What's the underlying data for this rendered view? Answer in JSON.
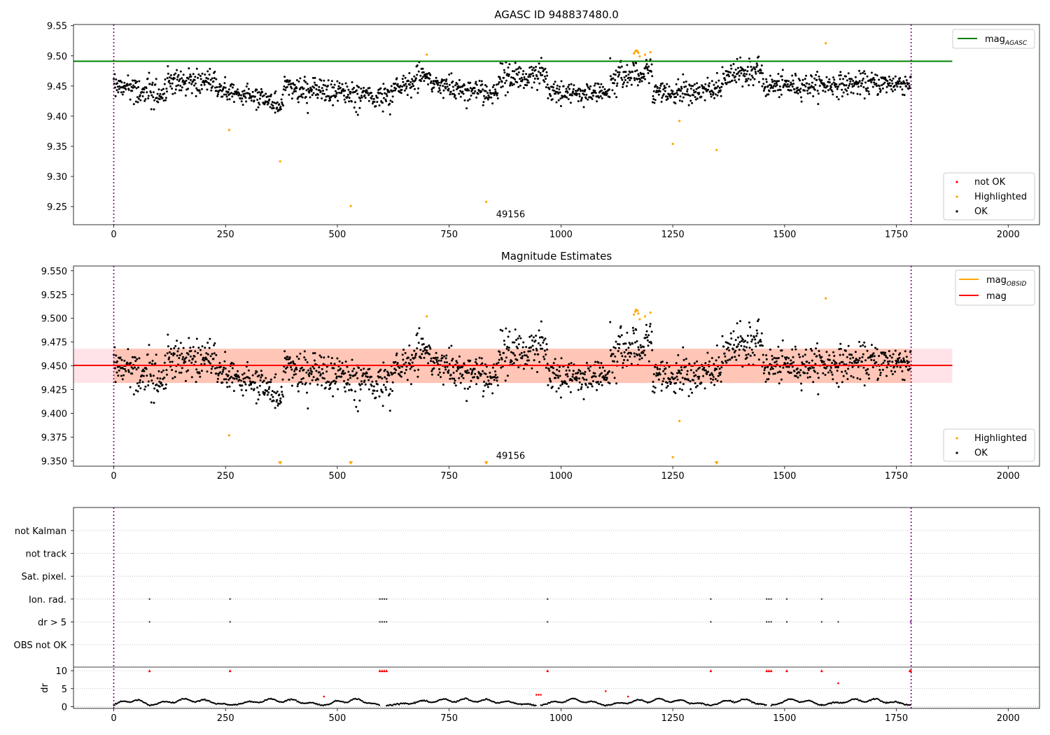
{
  "chart_data": [
    {
      "type": "scatter",
      "title": "AGASC ID 948837480.0",
      "xlim": [
        -90,
        2070
      ],
      "ylim": [
        9.22,
        9.552
      ],
      "x_ticks": [
        0,
        250,
        500,
        750,
        1000,
        1250,
        1500,
        1750,
        2000
      ],
      "y_ticks": [
        9.25,
        9.3,
        9.35,
        9.4,
        9.45,
        9.5,
        9.55
      ],
      "y_tick_labels": [
        "9.25",
        "9.30",
        "9.35",
        "9.40",
        "9.45",
        "9.50",
        "9.55"
      ],
      "vlines": [
        0,
        1783
      ],
      "vline_color": "#800080",
      "annotation": {
        "text": "49156",
        "x": 855,
        "y": 9.232
      },
      "hline": {
        "name": "magAGASC",
        "label_main": "mag",
        "label_sub": "AGASC",
        "y": 9.491,
        "xmax": 1875,
        "color": "#008000"
      },
      "ok_series": {
        "name": "OK",
        "color": "#000000",
        "n": 1783,
        "segments": [
          {
            "x": [
              0,
              120
            ],
            "c": [
              9.452,
              9.432
            ],
            "s": 0.014
          },
          {
            "x": [
              120,
              230
            ],
            "c": [
              9.455,
              9.458
            ],
            "s": 0.016
          },
          {
            "x": [
              230,
              380
            ],
            "c": [
              9.445,
              9.422
            ],
            "s": 0.011
          },
          {
            "x": [
              380,
              620
            ],
            "c": [
              9.446,
              9.43
            ],
            "s": 0.015
          },
          {
            "x": [
              620,
              710
            ],
            "c": [
              9.448,
              9.468
            ],
            "s": 0.014
          },
          {
            "x": [
              710,
              860
            ],
            "c": [
              9.45,
              9.438
            ],
            "s": 0.014
          },
          {
            "x": [
              860,
              970
            ],
            "c": [
              9.462,
              9.468
            ],
            "s": 0.015
          },
          {
            "x": [
              970,
              1110
            ],
            "c": [
              9.438,
              9.44
            ],
            "s": 0.012
          },
          {
            "x": [
              1110,
              1205
            ],
            "c": [
              9.462,
              9.478
            ],
            "s": 0.014
          },
          {
            "x": [
              1205,
              1360
            ],
            "c": [
              9.438,
              9.445
            ],
            "s": 0.013
          },
          {
            "x": [
              1360,
              1450
            ],
            "c": [
              9.462,
              9.478
            ],
            "s": 0.014
          },
          {
            "x": [
              1450,
              1783
            ],
            "c": [
              9.45,
              9.455
            ],
            "s": 0.013
          }
        ]
      },
      "highlighted": {
        "name": "Highlighted",
        "color": "#FFA500",
        "x": [
          258,
          372,
          530,
          700,
          833,
          1163,
          1166,
          1168,
          1171,
          1173,
          1176,
          1188,
          1200,
          1250,
          1265,
          1348,
          1592
        ],
        "y": [
          9.377,
          9.325,
          9.251,
          9.502,
          9.258,
          9.504,
          9.507,
          9.509,
          9.508,
          9.505,
          9.499,
          9.502,
          9.506,
          9.354,
          9.392,
          9.344,
          9.521
        ]
      },
      "not_ok": {
        "name": "not OK",
        "color": "#FF0000",
        "x": [],
        "y": []
      },
      "legends": [
        {
          "position": "upper right",
          "entries": [
            "magAGASC"
          ]
        },
        {
          "position": "lower right",
          "entries": [
            "not OK",
            "Highlighted",
            "OK"
          ]
        }
      ]
    },
    {
      "type": "scatter",
      "title": "Magnitude Estimates",
      "xlim": [
        -90,
        2070
      ],
      "ylim": [
        9.3445,
        9.555
      ],
      "x_ticks": [
        0,
        250,
        500,
        750,
        1000,
        1250,
        1500,
        1750,
        2000
      ],
      "y_ticks": [
        9.35,
        9.375,
        9.4,
        9.425,
        9.45,
        9.475,
        9.5,
        9.525,
        9.55
      ],
      "y_tick_labels": [
        "9.350",
        "9.375",
        "9.400",
        "9.425",
        "9.450",
        "9.475",
        "9.500",
        "9.525",
        "9.550"
      ],
      "vlines": [
        0,
        1783
      ],
      "vline_color": "#800080",
      "annotation": {
        "text": "49156",
        "x": 855,
        "y": 9.3522
      },
      "mag": {
        "name": "mag",
        "y": 9.4505,
        "xmin": -90,
        "xmax": 1875,
        "color": "#FF0000",
        "band": [
          9.432,
          9.468
        ],
        "band_color": "#FFC0CB"
      },
      "mag_obsid": {
        "name": "magOBSID",
        "label_main": "mag",
        "label_sub": "OBSID",
        "y": 9.4505,
        "xmin": 0,
        "xmax": 1783,
        "color": "#FFA500",
        "band": [
          9.432,
          9.468
        ],
        "band_color": "#FFA07A"
      },
      "ok_series": "same as panel 1",
      "highlighted": {
        "name": "Highlighted",
        "color": "#FFA500",
        "x": [
          258,
          700,
          1163,
          1166,
          1168,
          1171,
          1173,
          1176,
          1188,
          1200,
          1250,
          1265,
          1592
        ],
        "y": [
          9.377,
          9.502,
          9.504,
          9.507,
          9.509,
          9.508,
          9.505,
          9.499,
          9.502,
          9.506,
          9.354,
          9.392,
          9.521
        ],
        "below_range_x": [
          372,
          530,
          833,
          1348
        ]
      },
      "legends": [
        {
          "position": "upper right",
          "entries": [
            "magOBSID",
            "mag"
          ]
        },
        {
          "position": "lower right",
          "entries": [
            "Highlighted",
            "OK"
          ]
        }
      ]
    },
    {
      "type": "scatter",
      "title": "",
      "xlim": [
        -90,
        2070
      ],
      "x_ticks": [
        0,
        250,
        500,
        750,
        1000,
        1250,
        1500,
        1750,
        2000
      ],
      "flag_rows": [
        "not Kalman",
        "not track",
        "Sat. pixel.",
        "Ion. rad.",
        "dr > 5",
        "OBS not OK"
      ],
      "vlines": [
        0,
        1783
      ],
      "vline_color": "#800080",
      "flag_points": {
        "Ion. rad.": [
          80,
          260,
          595,
          600,
          605,
          610,
          970,
          1335,
          1460,
          1465,
          1470,
          1505,
          1583,
          1782
        ],
        "dr > 5": [
          80,
          260,
          595,
          600,
          605,
          610,
          970,
          1335,
          1460,
          1465,
          1470,
          1505,
          1583,
          1620,
          1782
        ]
      },
      "dr": {
        "ylabel": "dr",
        "ylim": [
          -0.5,
          11
        ],
        "y_ticks": [
          0,
          5,
          10
        ],
        "y_tick_labels": [
          "0",
          "5",
          "10"
        ],
        "series_color": "#000000",
        "clipped_at": 10,
        "clipped_x": [
          80,
          260,
          595,
          600,
          605,
          610,
          970,
          1335,
          1460,
          1465,
          1470,
          1505,
          1583,
          1780,
          1782
        ],
        "red_points": {
          "x": [
            470,
            945,
            950,
            955,
            1100,
            1150,
            1620
          ],
          "y": [
            2.8,
            3.3,
            3.3,
            3.3,
            4.3,
            2.8,
            6.5
          ]
        },
        "wave_segments": [
          [
            0,
            80
          ],
          [
            80,
            260
          ],
          [
            260,
            470
          ],
          [
            470,
            595
          ],
          [
            610,
            945
          ],
          [
            955,
            1100
          ],
          [
            1100,
            1335
          ],
          [
            1335,
            1460
          ],
          [
            1470,
            1583
          ],
          [
            1583,
            1783
          ]
        ]
      }
    }
  ]
}
